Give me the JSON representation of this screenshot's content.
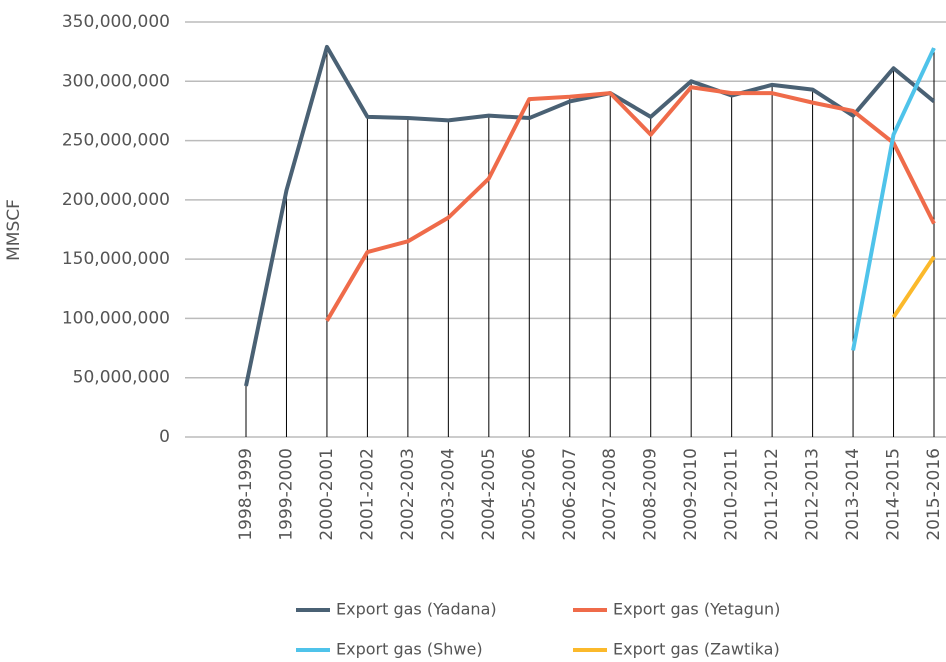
{
  "chart_data": {
    "type": "line",
    "y_label": "MMSCF",
    "categories": [
      "1998-1999",
      "1999-2000",
      "2000-2001",
      "2001-2002",
      "2002-2003",
      "2003-2004",
      "2004-2005",
      "2005-2006",
      "2006-2007",
      "2007-2008",
      "2008-2009",
      "2009-2010",
      "2010-2011",
      "2011-2012",
      "2012-2013",
      "2013-2014",
      "2014-2015",
      "2015-2016"
    ],
    "series": [
      {
        "name": "Export gas (Yadana)",
        "color": "#4a6174",
        "values": [
          43000000,
          208000000,
          329000000,
          270000000,
          269000000,
          267000000,
          271000000,
          269000000,
          283000000,
          290000000,
          270000000,
          300000000,
          288000000,
          297000000,
          293000000,
          271000000,
          311000000,
          283000000
        ]
      },
      {
        "name": "Export gas (Yetagun)",
        "color": "#ef6b4a",
        "values": [
          null,
          null,
          98000000,
          156000000,
          165000000,
          185000000,
          218000000,
          285000000,
          287000000,
          290000000,
          255000000,
          295000000,
          290000000,
          290000000,
          282000000,
          275000000,
          248000000,
          180000000
        ]
      },
      {
        "name": "Export gas (Shwe)",
        "color": "#4fc3ea",
        "values": [
          null,
          null,
          null,
          null,
          null,
          null,
          null,
          null,
          null,
          null,
          null,
          null,
          null,
          null,
          null,
          73000000,
          255000000,
          328000000
        ]
      },
      {
        "name": "Export gas (Zawtika)",
        "color": "#fbb92b",
        "values": [
          null,
          null,
          null,
          null,
          null,
          null,
          null,
          null,
          null,
          null,
          null,
          null,
          null,
          null,
          null,
          null,
          101000000,
          152000000
        ]
      }
    ],
    "ylim": [
      0,
      350000000
    ],
    "yticks": [
      0,
      {
        "value": 50000000,
        "label": "50,000,000"
      },
      {
        "value": 100000000,
        "label": "100,000,000"
      },
      {
        "value": 150000000,
        "label": "150,000,000"
      },
      {
        "value": 200000000,
        "label": "200,000,000"
      },
      {
        "value": 250000000,
        "label": "250,000,000"
      },
      {
        "value": 300000000,
        "label": "300,000,000"
      },
      {
        "value": 350000000,
        "label": "350,000,000"
      }
    ],
    "grid": true
  }
}
